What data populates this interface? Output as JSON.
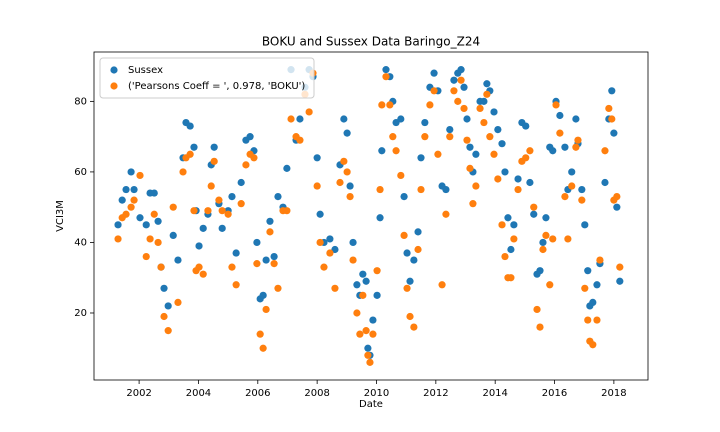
{
  "chart_data": {
    "type": "scatter",
    "title": "BOKU and Sussex Data Baringo_Z24",
    "x_label": "Date",
    "y_label": "VCI3M",
    "x": [
      2001.29,
      2001.43,
      2001.56,
      2001.73,
      2001.83,
      2002.03,
      2002.24,
      2002.37,
      2002.51,
      2002.64,
      2002.74,
      2002.84,
      2002.98,
      2003.15,
      2003.31,
      2003.48,
      2003.58,
      2003.72,
      2003.85,
      2003.92,
      2004.02,
      2004.16,
      2004.32,
      2004.43,
      2004.53,
      2004.69,
      2004.8,
      2005.0,
      2005.13,
      2005.27,
      2005.44,
      2005.6,
      2005.74,
      2005.87,
      2005.97,
      2006.08,
      2006.18,
      2006.28,
      2006.41,
      2006.55,
      2006.68,
      2006.85,
      2006.98,
      2007.12,
      2007.29,
      2007.42,
      2007.59,
      2007.73,
      2007.86,
      2008.0,
      2008.1,
      2008.23,
      2008.43,
      2008.6,
      2008.77,
      2008.9,
      2009.01,
      2009.11,
      2009.21,
      2009.34,
      2009.44,
      2009.54,
      2009.65,
      2009.71,
      2009.78,
      2009.88,
      2010.02,
      2010.12,
      2010.18,
      2010.32,
      2010.45,
      2010.55,
      2010.66,
      2010.82,
      2010.93,
      2011.03,
      2011.13,
      2011.26,
      2011.4,
      2011.5,
      2011.63,
      2011.8,
      2011.94,
      2012.07,
      2012.21,
      2012.34,
      2012.47,
      2012.61,
      2012.74,
      2012.85,
      2012.95,
      2013.05,
      2013.15,
      2013.25,
      2013.35,
      2013.49,
      2013.62,
      2013.72,
      2013.82,
      2013.96,
      2014.09,
      2014.23,
      2014.33,
      2014.43,
      2014.53,
      2014.63,
      2014.77,
      2014.9,
      2015.03,
      2015.17,
      2015.3,
      2015.41,
      2015.51,
      2015.61,
      2015.71,
      2015.84,
      2015.94,
      2016.05,
      2016.18,
      2016.35,
      2016.45,
      2016.58,
      2016.72,
      2016.79,
      2016.92,
      2017.02,
      2017.12,
      2017.19,
      2017.29,
      2017.43,
      2017.53,
      2017.7,
      2017.83,
      2017.93,
      2018.0,
      2018.1,
      2018.2
    ],
    "series": [
      {
        "name": "Sussex",
        "color": "#1f77b4",
        "values": [
          45,
          52,
          55,
          60,
          55,
          47,
          45,
          54,
          54,
          46,
          33,
          27,
          22,
          42,
          35,
          64,
          74,
          73,
          67,
          49,
          39,
          44,
          48,
          62,
          67,
          51,
          44,
          49,
          53,
          37,
          57,
          69,
          70,
          66,
          40,
          24,
          25,
          35,
          46,
          36,
          53,
          50,
          61,
          89,
          69,
          75,
          84,
          89,
          87,
          64,
          48,
          40,
          41,
          38,
          62,
          75,
          71,
          56,
          40,
          28,
          25,
          31,
          29,
          10,
          8,
          18,
          25,
          47,
          66,
          89,
          87,
          80,
          74,
          75,
          53,
          37,
          29,
          35,
          43,
          64,
          74,
          84,
          88,
          83,
          56,
          55,
          72,
          86,
          88,
          89,
          84,
          75,
          67,
          60,
          65,
          80,
          80,
          85,
          83,
          77,
          72,
          68,
          60,
          47,
          38,
          45,
          58,
          74,
          73,
          57,
          48,
          31,
          32,
          40,
          47,
          67,
          66,
          80,
          76,
          67,
          55,
          60,
          75,
          68,
          55,
          45,
          32,
          22,
          23,
          28,
          34,
          57,
          75,
          83,
          71,
          50,
          29
        ]
      },
      {
        "name": "('Pearsons Coeff = ', 0.978, 'BOKU')",
        "color": "#ff7f0e",
        "values": [
          41,
          47,
          48,
          50,
          52,
          59,
          36,
          41,
          48,
          40,
          33,
          19,
          15,
          50,
          23,
          60,
          64,
          65,
          49,
          32,
          33,
          31,
          49,
          56,
          63,
          52,
          49,
          48,
          33,
          28,
          51,
          62,
          65,
          64,
          34,
          14,
          10,
          21,
          43,
          34,
          27,
          49,
          49,
          75,
          70,
          69,
          82,
          77,
          88,
          56,
          40,
          33,
          37,
          27,
          57,
          63,
          60,
          53,
          35,
          20,
          14,
          25,
          15,
          8,
          6,
          14,
          32,
          55,
          79,
          87,
          79,
          70,
          66,
          59,
          42,
          27,
          19,
          16,
          38,
          55,
          70,
          79,
          83,
          65,
          28,
          48,
          70,
          83,
          80,
          86,
          78,
          69,
          61,
          51,
          56,
          78,
          74,
          82,
          70,
          65,
          58,
          45,
          36,
          30,
          30,
          41,
          55,
          63,
          64,
          66,
          50,
          21,
          16,
          38,
          42,
          28,
          41,
          79,
          71,
          53,
          41,
          56,
          67,
          69,
          52,
          27,
          18,
          12,
          11,
          18,
          35,
          66,
          78,
          75,
          52,
          53,
          33
        ]
      }
    ],
    "xlim": [
      2000.48,
      2019.15
    ],
    "xticks": [
      2002,
      2004,
      2006,
      2008,
      2010,
      2012,
      2014,
      2016,
      2018
    ],
    "ylim": [
      1,
      94
    ],
    "yticks": [
      20,
      40,
      60,
      80
    ],
    "legend": "upper left"
  }
}
